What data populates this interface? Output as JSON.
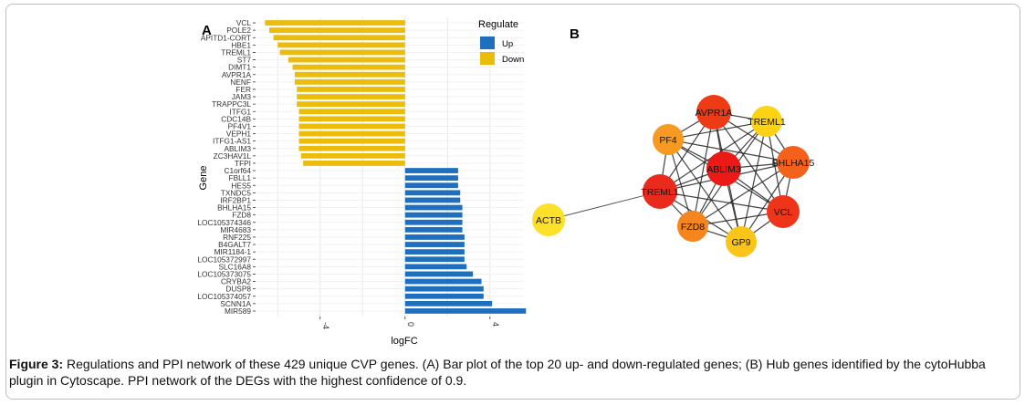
{
  "caption": {
    "label": "Figure 3:",
    "text": " Regulations and PPI network of these 429 unique CVP genes. (A) Bar plot of the top 20 up- and down-regulated genes; (B) Hub genes identified by the cytoHubba plugin in Cytoscape. PPI network of the DEGs with the highest confidence of 0.9."
  },
  "colors": {
    "up": "#1f6fbf",
    "down": "#ecbc0b",
    "grid": "#e9e9e9",
    "edge": "#222222"
  },
  "chart_data": [
    {
      "type": "bar",
      "orientation": "horizontal",
      "panel_label": "A",
      "xlabel": "logFC",
      "ylabel": "Gene",
      "xlim": [
        -7,
        5.6
      ],
      "x_ticks": [
        -4,
        0,
        4
      ],
      "x_tick_labels": [
        "-4",
        "0",
        "4"
      ],
      "grid": true,
      "legend": {
        "title": "Regulate",
        "position": "top-right",
        "entries": [
          {
            "name": "Up",
            "color": "#1f6fbf"
          },
          {
            "name": "Down",
            "color": "#ecbc0b"
          }
        ]
      },
      "bars": [
        {
          "gene": "VCL",
          "value": -6.6,
          "regulate": "Down"
        },
        {
          "gene": "POLE2",
          "value": -6.4,
          "regulate": "Down"
        },
        {
          "gene": "APITD1-CORT",
          "value": -6.2,
          "regulate": "Down"
        },
        {
          "gene": "HBE1",
          "value": -6.0,
          "regulate": "Down"
        },
        {
          "gene": "TREML1",
          "value": -5.9,
          "regulate": "Down"
        },
        {
          "gene": "ST7",
          "value": -5.5,
          "regulate": "Down"
        },
        {
          "gene": "DIMT1",
          "value": -5.3,
          "regulate": "Down"
        },
        {
          "gene": "AVPR1A",
          "value": -5.2,
          "regulate": "Down"
        },
        {
          "gene": "NENF",
          "value": -5.2,
          "regulate": "Down"
        },
        {
          "gene": "FER",
          "value": -5.1,
          "regulate": "Down"
        },
        {
          "gene": "JAM3",
          "value": -5.1,
          "regulate": "Down"
        },
        {
          "gene": "TRAPPC3L",
          "value": -5.1,
          "regulate": "Down"
        },
        {
          "gene": "ITFG1",
          "value": -5.0,
          "regulate": "Down"
        },
        {
          "gene": "CDC14B",
          "value": -5.0,
          "regulate": "Down"
        },
        {
          "gene": "PF4V1",
          "value": -5.0,
          "regulate": "Down"
        },
        {
          "gene": "VEPH1",
          "value": -5.0,
          "regulate": "Down"
        },
        {
          "gene": "ITFG1-AS1",
          "value": -5.0,
          "regulate": "Down"
        },
        {
          "gene": "ABLIM3",
          "value": -5.0,
          "regulate": "Down"
        },
        {
          "gene": "ZC3HAV1L",
          "value": -4.9,
          "regulate": "Down"
        },
        {
          "gene": "TFPI",
          "value": -4.8,
          "regulate": "Down"
        },
        {
          "gene": "C1orf64",
          "value": 2.5,
          "regulate": "Up"
        },
        {
          "gene": "FBLL1",
          "value": 2.5,
          "regulate": "Up"
        },
        {
          "gene": "HES5",
          "value": 2.5,
          "regulate": "Up"
        },
        {
          "gene": "TXNDC5",
          "value": 2.6,
          "regulate": "Up"
        },
        {
          "gene": "IRF2BP1",
          "value": 2.6,
          "regulate": "Up"
        },
        {
          "gene": "BHLHA15",
          "value": 2.7,
          "regulate": "Up"
        },
        {
          "gene": "FZD8",
          "value": 2.7,
          "regulate": "Up"
        },
        {
          "gene": "LOC105374346",
          "value": 2.7,
          "regulate": "Up"
        },
        {
          "gene": "MIR4683",
          "value": 2.7,
          "regulate": "Up"
        },
        {
          "gene": "RNF225",
          "value": 2.8,
          "regulate": "Up"
        },
        {
          "gene": "B4GALT7",
          "value": 2.8,
          "regulate": "Up"
        },
        {
          "gene": "MIR1184-1",
          "value": 2.8,
          "regulate": "Up"
        },
        {
          "gene": "LOC105372997",
          "value": 2.8,
          "regulate": "Up"
        },
        {
          "gene": "SLC16A8",
          "value": 2.9,
          "regulate": "Up"
        },
        {
          "gene": "LOC105373075",
          "value": 3.2,
          "regulate": "Up"
        },
        {
          "gene": "CRYBA2",
          "value": 3.6,
          "regulate": "Up"
        },
        {
          "gene": "DUSP8",
          "value": 3.7,
          "regulate": "Up"
        },
        {
          "gene": "LOC105374057",
          "value": 3.7,
          "regulate": "Up"
        },
        {
          "gene": "SCNN1A",
          "value": 4.1,
          "regulate": "Up"
        },
        {
          "gene": "MIR589",
          "value": 5.7,
          "regulate": "Up"
        }
      ]
    },
    {
      "type": "network",
      "panel_label": "B",
      "nodes": [
        {
          "id": "AVPR1A",
          "color": "#ef3b15"
        },
        {
          "id": "TREML1",
          "color": "#fbd214"
        },
        {
          "id": "PF4",
          "color": "#f79a22"
        },
        {
          "id": "BHLHA15",
          "color": "#f4611a"
        },
        {
          "id": "ABLIM3",
          "color": "#ec1a16"
        },
        {
          "id": "TREML1",
          "color": "#ea2a1c"
        },
        {
          "id": "VCL",
          "color": "#ee3419"
        },
        {
          "id": "FZD8",
          "color": "#f5861e"
        },
        {
          "id": "GP9",
          "color": "#fbc419"
        },
        {
          "id": "ACTB",
          "color": "#fde02a"
        }
      ],
      "edges": [
        [
          0,
          1
        ],
        [
          0,
          2
        ],
        [
          0,
          3
        ],
        [
          0,
          4
        ],
        [
          0,
          5
        ],
        [
          0,
          6
        ],
        [
          0,
          7
        ],
        [
          0,
          8
        ],
        [
          1,
          2
        ],
        [
          1,
          3
        ],
        [
          1,
          4
        ],
        [
          1,
          5
        ],
        [
          1,
          6
        ],
        [
          1,
          7
        ],
        [
          1,
          8
        ],
        [
          2,
          3
        ],
        [
          2,
          4
        ],
        [
          2,
          5
        ],
        [
          2,
          6
        ],
        [
          2,
          7
        ],
        [
          2,
          8
        ],
        [
          3,
          4
        ],
        [
          3,
          5
        ],
        [
          3,
          6
        ],
        [
          3,
          7
        ],
        [
          3,
          8
        ],
        [
          4,
          5
        ],
        [
          4,
          6
        ],
        [
          4,
          7
        ],
        [
          4,
          8
        ],
        [
          5,
          6
        ],
        [
          5,
          7
        ],
        [
          5,
          8
        ],
        [
          6,
          7
        ],
        [
          6,
          8
        ],
        [
          7,
          8
        ],
        [
          9,
          5
        ]
      ]
    }
  ]
}
